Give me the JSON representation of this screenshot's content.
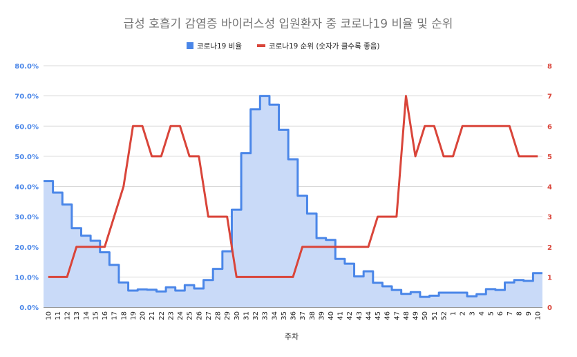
{
  "chart_data": {
    "type": "line",
    "title": "급성 호흡기 감염증 바이러스성 입원환자 중 코로나19 비율 및 순위",
    "xlabel": "주차",
    "categories": [
      "10",
      "11",
      "12",
      "13",
      "14",
      "15",
      "16",
      "17",
      "18",
      "19",
      "20",
      "21",
      "22",
      "23",
      "24",
      "25",
      "26",
      "27",
      "28",
      "29",
      "30",
      "31",
      "32",
      "33",
      "34",
      "35",
      "36",
      "37",
      "38",
      "39",
      "40",
      "41",
      "42",
      "43",
      "44",
      "45",
      "46",
      "47",
      "48",
      "49",
      "50",
      "51",
      "52",
      "1",
      "2",
      "3",
      "4",
      "5",
      "6",
      "7",
      "8",
      "9",
      "10"
    ],
    "left_axis": {
      "ticks": [
        "0.0%",
        "10.0%",
        "20.0%",
        "30.0%",
        "40.0%",
        "50.0%",
        "60.0%",
        "70.0%",
        "80.0%"
      ],
      "ylim": [
        0,
        80
      ]
    },
    "right_axis": {
      "ticks": [
        "0",
        "1",
        "2",
        "3",
        "4",
        "5",
        "6",
        "7",
        "8"
      ],
      "ylim": [
        0,
        8
      ]
    },
    "grid": true,
    "legend_position": "top",
    "series": [
      {
        "name": "코로나19 비율",
        "type": "stepped-area",
        "axis": "left",
        "color": "#4a86e8",
        "fill": "#c9daf8",
        "values": [
          41.8,
          38,
          34,
          26.2,
          23.7,
          22,
          18.2,
          14,
          8.2,
          5.5,
          5.9,
          5.8,
          5.2,
          6.6,
          5.5,
          7.3,
          6.2,
          9,
          12.7,
          18.5,
          32.3,
          51,
          65.6,
          70,
          67.1,
          58.8,
          49,
          36.9,
          31,
          22.9,
          22.3,
          16,
          14.4,
          10.2,
          11.9,
          8.1,
          6.9,
          5.7,
          4.4,
          5,
          3.4,
          3.8,
          4.8,
          4.8,
          4.8,
          3.6,
          4.3,
          6,
          5.7,
          8.2,
          9,
          8.7,
          11.3
        ]
      },
      {
        "name": "코로나19 순위 (숫자가 클수록 좋음)",
        "type": "line",
        "axis": "right",
        "color": "#d9453a",
        "values": [
          1,
          1,
          1,
          2,
          2,
          2,
          2,
          3,
          4,
          6,
          6,
          5,
          5,
          6,
          6,
          5,
          5,
          3,
          3,
          3,
          1,
          1,
          1,
          1,
          1,
          1,
          1,
          2,
          2,
          2,
          2,
          2,
          2,
          2,
          2,
          3,
          3,
          3,
          7,
          5,
          6,
          6,
          5,
          5,
          6,
          6,
          6,
          6,
          6,
          6,
          5,
          5,
          5
        ]
      }
    ]
  }
}
